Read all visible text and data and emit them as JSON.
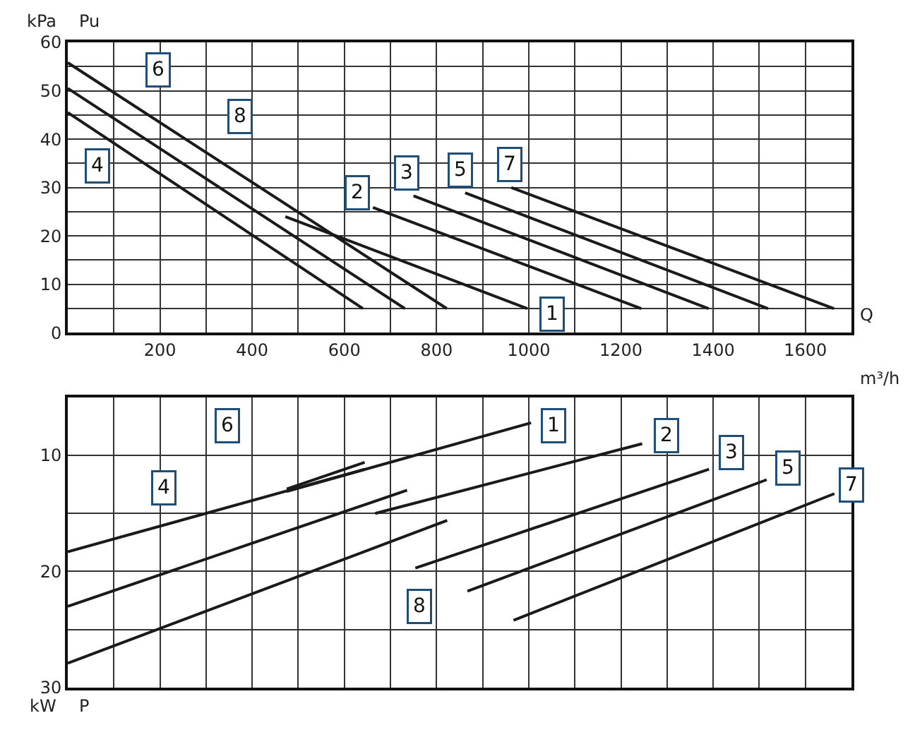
{
  "chart_data": [
    {
      "type": "line",
      "ylabel": "kPa",
      "xlabel": "Q",
      "grid": true,
      "marker": "none",
      "line_style": "solid",
      "xlim": [
        0,
        1700
      ],
      "xticks": [
        {
          "value": 0,
          "label": null
        },
        {
          "value": 100,
          "label": null
        },
        200,
        {
          "value": 300,
          "label": null
        },
        400,
        {
          "value": 500,
          "label": null
        },
        600,
        {
          "value": 700,
          "label": null
        },
        800,
        {
          "value": 900,
          "label": null
        },
        1000,
        {
          "value": 1100,
          "label": null
        },
        1200,
        {
          "value": 1300,
          "label": null
        },
        1400,
        {
          "value": 1500,
          "label": null
        },
        1600,
        {
          "value": 1700,
          "label": null
        }
      ],
      "ylim": [
        0,
        60
      ],
      "yticks": [
        0,
        {
          "value": 5,
          "label": null
        },
        10,
        {
          "value": 15,
          "label": null
        },
        20,
        {
          "value": 25,
          "label": null
        },
        30,
        {
          "value": 35,
          "label": null
        },
        40,
        {
          "value": 45,
          "label": null
        },
        50,
        {
          "value": 55,
          "label": null
        },
        60
      ],
      "series": [
        {
          "color": "#1a1a1a",
          "x": [
            0,
            640
          ],
          "values": [
            45.5,
            5
          ]
        },
        {
          "color": "#1a1a1a",
          "x": [
            0,
            731
          ],
          "values": [
            50.5,
            5
          ]
        },
        {
          "color": "#1a1a1a",
          "x": [
            0,
            822
          ],
          "values": [
            55.8,
            5
          ]
        },
        {
          "color": "#1a1a1a",
          "x": [
            472,
            997
          ],
          "values": [
            24,
            5
          ]
        },
        {
          "color": "#1a1a1a",
          "x": [
            662,
            1244
          ],
          "values": [
            25.9,
            5
          ]
        },
        {
          "color": "#1a1a1a",
          "x": [
            750,
            1390
          ],
          "values": [
            28.3,
            5
          ]
        },
        {
          "color": "#1a1a1a",
          "x": [
            862,
            1519
          ],
          "values": [
            28.9,
            5
          ]
        },
        {
          "color": "#1a1a1a",
          "x": [
            962,
            1662
          ],
          "values": [
            30,
            5
          ]
        }
      ],
      "annotations": [
        {
          "text": "6",
          "x": 197,
          "y": 54.4
        },
        {
          "text": "8",
          "x": 373,
          "y": 44.6
        },
        {
          "text": "4",
          "x": 65,
          "y": 34.5
        },
        {
          "text": "2",
          "x": 627,
          "y": 28.9
        },
        {
          "text": "3",
          "x": 735,
          "y": 32.9
        },
        {
          "text": "5",
          "x": 853,
          "y": 33.6
        },
        {
          "text": "7",
          "x": 960,
          "y": 34.8
        },
        {
          "text": "1",
          "x": 1051,
          "y": 3.7
        },
        "Pu"
      ]
    },
    {
      "type": "line",
      "ylabel": "kW",
      "xlabel": "m³/h",
      "grid": true,
      "marker": "none",
      "line_style": "solid",
      "tick_labels": "y",
      "xlim": [
        0,
        1700
      ],
      "xticks": [
        {
          "value": 0,
          "label": null
        },
        {
          "value": 100,
          "label": null
        },
        {
          "value": 200,
          "label": null
        },
        {
          "value": 300,
          "label": null
        },
        {
          "value": 400,
          "label": null
        },
        {
          "value": 500,
          "label": null
        },
        {
          "value": 600,
          "label": null
        },
        {
          "value": 700,
          "label": null
        },
        {
          "value": 800,
          "label": null
        },
        {
          "value": 900,
          "label": null
        },
        {
          "value": 1000,
          "label": null
        },
        {
          "value": 1100,
          "label": null
        },
        {
          "value": 1200,
          "label": null
        },
        {
          "value": 1300,
          "label": null
        },
        {
          "value": 1400,
          "label": null
        },
        {
          "value": 1500,
          "label": null
        },
        {
          "value": 1600,
          "label": null
        },
        {
          "value": 1700,
          "label": null
        }
      ],
      "ylim": [
        30,
        5
      ],
      "yticks": [
        {
          "value": 5,
          "label": null
        },
        10,
        {
          "value": 15,
          "label": null
        },
        20,
        {
          "value": 25,
          "label": null
        },
        30
      ],
      "series": [
        {
          "color": "#1a1a1a",
          "x": [
            0,
            644
          ],
          "values": [
            18.3,
            11.2
          ]
        },
        {
          "color": "#1a1a1a",
          "x": [
            0,
            736
          ],
          "values": [
            23,
            13
          ]
        },
        {
          "color": "#1a1a1a",
          "x": [
            0,
            823
          ],
          "values": [
            27.9,
            15.6
          ]
        },
        {
          "color": "#1a1a1a",
          "x": [
            475,
            1005
          ],
          "values": [
            13.1,
            7.2
          ]
        },
        {
          "color": "#1a1a1a",
          "x": [
            475,
            644
          ],
          "values": [
            12.9,
            10.6
          ]
        },
        {
          "color": "#1a1a1a",
          "x": [
            667,
            1246
          ],
          "values": [
            15,
            9
          ]
        },
        {
          "color": "#1a1a1a",
          "x": [
            754,
            1391
          ],
          "values": [
            19.7,
            11.2
          ]
        },
        {
          "color": "#1a1a1a",
          "x": [
            867,
            1516
          ],
          "values": [
            21.7,
            12.1
          ]
        },
        {
          "color": "#1a1a1a",
          "x": [
            967,
            1663
          ],
          "values": [
            24.2,
            13.3
          ]
        }
      ],
      "annotations": [
        {
          "text": "1",
          "x": 1053,
          "y": 7.4
        },
        {
          "text": "2",
          "x": 1300,
          "y": 8.3
        },
        {
          "text": "3",
          "x": 1441,
          "y": 9.8
        },
        {
          "text": "5",
          "x": 1563,
          "y": 11.1
        },
        {
          "text": "7",
          "x": 1700,
          "y": 12.5
        },
        {
          "text": "4",
          "x": 207,
          "y": 12.8
        },
        {
          "text": "6",
          "x": 347,
          "y": 7.5
        },
        {
          "text": "8",
          "x": 764,
          "y": 23
        },
        "P"
      ]
    }
  ]
}
